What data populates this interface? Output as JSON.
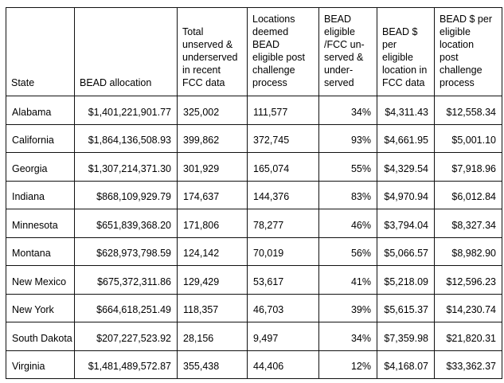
{
  "chart_data": {
    "type": "table",
    "title": "",
    "columns": [
      {
        "id": "state",
        "label": "State",
        "align": "left"
      },
      {
        "id": "bead-allocation",
        "label": "BEAD allocation",
        "align": "right"
      },
      {
        "id": "total-unserved-underserved-fcc",
        "label": "Total\nunserved &\nunderserved\nin recent\nFCC data",
        "align": "left"
      },
      {
        "id": "locations-bead-eligible-post-challenge",
        "label": "Locations\ndeemed BEAD\neligible post\nchallenge\nprocess",
        "align": "left"
      },
      {
        "id": "bead-eligible-pct",
        "label": "BEAD\neligible\n/FCC un-\nserved &\nunder-\nserved",
        "align": "right"
      },
      {
        "id": "bead-per-location-fcc",
        "label": "BEAD $\nper\neligible\nlocation in\nFCC data",
        "align": "right"
      },
      {
        "id": "bead-per-location-post-challenge",
        "label": "BEAD $ per\neligible\nlocation\npost\nchallenge\nprocess",
        "align": "right"
      }
    ],
    "rows": [
      [
        "Alabama",
        "$1,401,221,901.77",
        "325,002",
        "111,577",
        "34%",
        "$4,311.43",
        "$12,558.34"
      ],
      [
        "California",
        "$1,864,136,508.93",
        "399,862",
        "372,745",
        "93%",
        "$4,661.95",
        "$5,001.10"
      ],
      [
        "Georgia",
        "$1,307,214,371.30",
        "301,929",
        "165,074",
        "55%",
        "$4,329.54",
        "$7,918.96"
      ],
      [
        "Indiana",
        "$868,109,929.79",
        "174,637",
        "144,376",
        "83%",
        "$4,970.94",
        "$6,012.84"
      ],
      [
        "Minnesota",
        "$651,839,368.20",
        "171,806",
        "78,277",
        "46%",
        "$3,794.04",
        "$8,327.34"
      ],
      [
        "Montana",
        "$628,973,798.59",
        "124,142",
        "70,019",
        "56%",
        "$5,066.57",
        "$8,982.90"
      ],
      [
        "New Mexico",
        "$675,372,311.86",
        "129,429",
        "53,617",
        "41%",
        "$5,218.09",
        "$12,596.23"
      ],
      [
        "New York",
        "$664,618,251.49",
        "118,357",
        "46,703",
        "39%",
        "$5,615.37",
        "$14,230.74"
      ],
      [
        "South Dakota",
        "$207,227,523.92",
        "28,156",
        "9,497",
        "34%",
        "$7,359.98",
        "$21,820.31"
      ],
      [
        "Virginia",
        "$1,481,489,572.87",
        "355,438",
        "44,406",
        "12%",
        "$4,168.07",
        "$33,362.37"
      ]
    ]
  }
}
